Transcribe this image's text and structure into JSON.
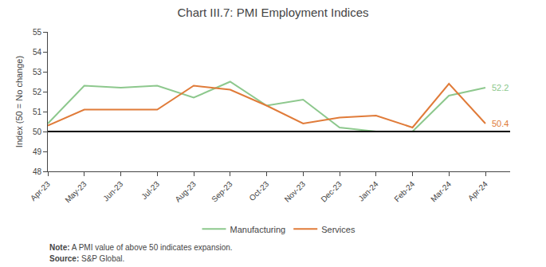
{
  "chart_data": {
    "type": "line",
    "title": "Chart III.7: PMI Employment Indices",
    "y_label": "Index (50 = No change)",
    "categories": [
      "Apr-23",
      "May-23",
      "Jun-23",
      "Jul-23",
      "Aug-23",
      "Sep-23",
      "Oct-23",
      "Nov-23",
      "Dec-23",
      "Jan-24",
      "Feb-24",
      "Mar-24",
      "Apr-24"
    ],
    "series": [
      {
        "name": "Manufacturing",
        "color": "#8dc88d",
        "values": [
          50.4,
          52.3,
          52.2,
          52.3,
          51.7,
          52.5,
          51.3,
          51.6,
          50.2,
          50.0,
          50.0,
          51.8,
          52.2
        ]
      },
      {
        "name": "Services",
        "color": "#e07b39",
        "values": [
          50.3,
          51.1,
          51.1,
          51.1,
          52.3,
          52.1,
          51.3,
          50.4,
          50.7,
          50.8,
          50.2,
          52.4,
          50.4
        ]
      }
    ],
    "annotations": [
      {
        "text": "52.2",
        "series": "Manufacturing",
        "x": "Apr-24",
        "y": 52.2
      },
      {
        "text": "50.4",
        "series": "Services",
        "x": "Apr-24",
        "y": 50.4
      }
    ],
    "hline": 50,
    "note": "Note: A PMI value of above 50 indicates expansion.",
    "source": "Source: S&P Global.",
    "ylim": [
      48,
      55
    ],
    "yticks": [
      48,
      49,
      50,
      51,
      52,
      53,
      54,
      55
    ],
    "grid": false,
    "legend": "bottom"
  }
}
